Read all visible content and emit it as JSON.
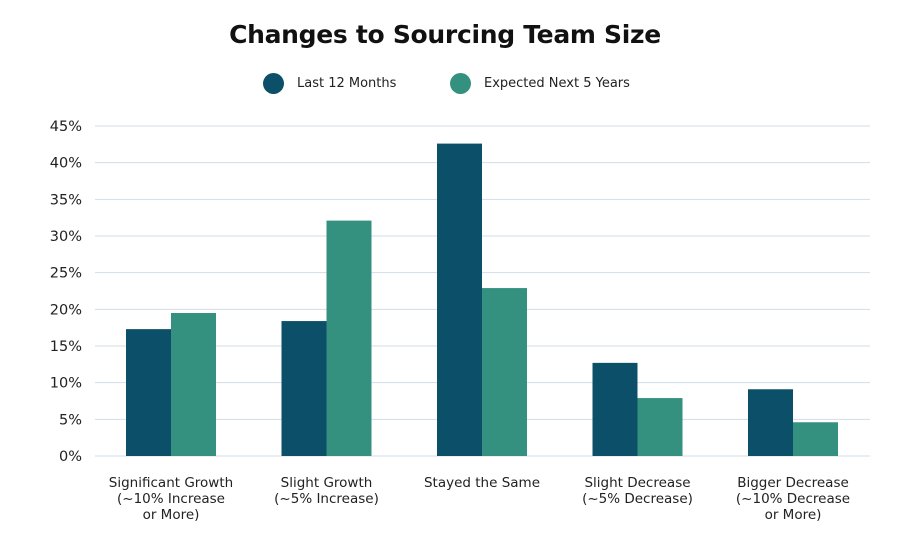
{
  "chart_data": {
    "type": "bar",
    "title": "Changes to Sourcing Team Size",
    "xlabel": "",
    "ylabel": "",
    "ylim": [
      0,
      45
    ],
    "yticks": [
      0,
      5,
      10,
      15,
      20,
      25,
      30,
      35,
      40,
      45
    ],
    "ytick_format": "percent",
    "grid": true,
    "legend_position": "top-center",
    "categories": [
      [
        "Significant Growth",
        "(~10% Increase",
        "or More)"
      ],
      [
        "Slight Growth",
        "(~5% Increase)"
      ],
      [
        "Stayed the Same"
      ],
      [
        "Slight Decrease",
        "(~5% Decrease)"
      ],
      [
        "Bigger Decrease",
        "(~10% Decrease",
        "or More)"
      ]
    ],
    "series": [
      {
        "name": "Last 12 Months",
        "color": "#0b5068",
        "values": [
          17.3,
          18.4,
          42.6,
          12.7,
          9.1
        ]
      },
      {
        "name": "Expected Next 5 Years",
        "color": "#35917f",
        "values": [
          19.5,
          32.1,
          22.9,
          7.9,
          4.6
        ]
      }
    ]
  }
}
